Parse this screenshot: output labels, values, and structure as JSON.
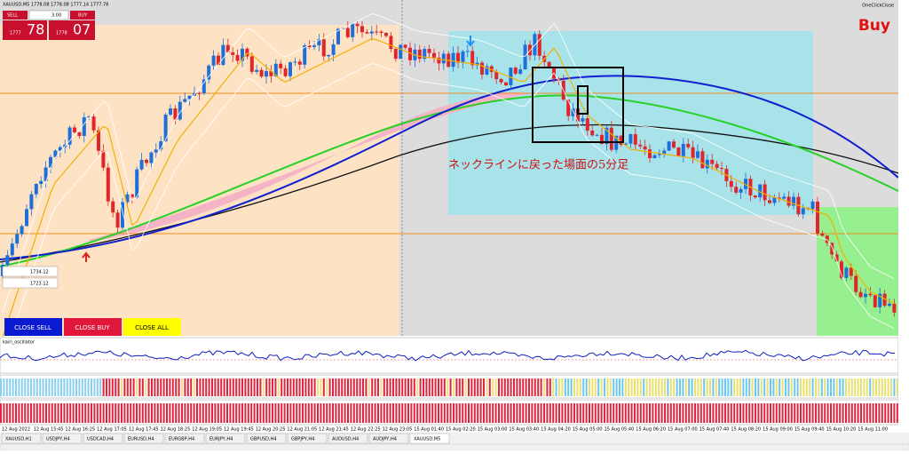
{
  "header": {
    "symbol_info": "XAUUSD,M5  1778.08 1778.08 1777.14 1777.78",
    "one_click": "OneClickClose",
    "signal": "Buy"
  },
  "trade_panel": {
    "sell": "SELL",
    "lots": "3.00",
    "buy": "BUY",
    "sell_big": "1777",
    "sell_pips": "78",
    "buy_big": "1778",
    "buy_pips": "07"
  },
  "annotation": "ネックラインに戻った場面の5分足",
  "levels": [
    "1734.12",
    "1723.12"
  ],
  "buttons": [
    "CLOSE SELL",
    "CLOSE BUY",
    "CLOSE ALL"
  ],
  "indicator_label": "kairi_oscillator",
  "time_labels": [
    "12 Aug 2022",
    "12 Aug 15:45",
    "12 Aug 16:25",
    "12 Aug 17:05",
    "12 Aug 17:45",
    "12 Aug 18:25",
    "12 Aug 19:05",
    "12 Aug 19:45",
    "12 Aug 20:25",
    "12 Aug 21:05",
    "12 Aug 21:45",
    "12 Aug 22:25",
    "12 Aug 23:05",
    "15 Aug 01:40",
    "15 Aug 02:20",
    "15 Aug 03:00",
    "15 Aug 03:40",
    "15 Aug 04:20",
    "15 Aug 05:00",
    "15 Aug 05:40",
    "15 Aug 06:20",
    "15 Aug 07:00",
    "15 Aug 07:40",
    "15 Aug 08:20",
    "15 Aug 09:00",
    "15 Aug 09:40",
    "15 Aug 10:20",
    "15 Aug 11:00"
  ],
  "tabs": [
    "XAUUSD,H1",
    "USDJPY,H4",
    "USDCAD,H4",
    "EURUSD,H4",
    "EURGBP,H4",
    "EURJPY,H4",
    "GBPUSD,H4",
    "GBPJPY,H4",
    "AUDUSD,H4",
    "AUDJPY,H4",
    "XAUUSD,M5"
  ]
}
